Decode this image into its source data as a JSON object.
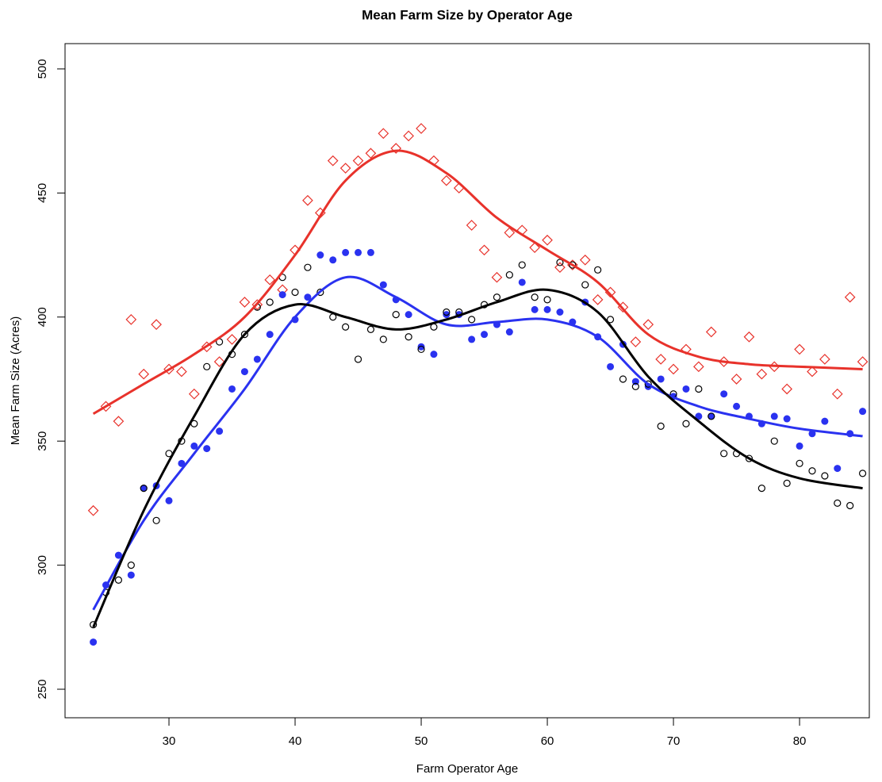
{
  "chart_data": {
    "type": "scatter",
    "title": "Mean Farm Size by Operator Age",
    "xlabel": "Farm Operator Age",
    "ylabel": "Mean Farm Size (Acres)",
    "xlim": [
      21.76,
      85.53
    ],
    "ylim": [
      238.5,
      510.2
    ],
    "xticks": [
      30,
      40,
      50,
      60,
      70,
      80
    ],
    "yticks": [
      250,
      300,
      350,
      400,
      450,
      500
    ],
    "x": [
      24,
      25,
      26,
      27,
      28,
      29,
      30,
      31,
      32,
      33,
      34,
      35,
      36,
      37,
      38,
      39,
      40,
      41,
      42,
      43,
      44,
      45,
      46,
      47,
      48,
      49,
      50,
      51,
      52,
      53,
      54,
      55,
      56,
      57,
      58,
      59,
      60,
      61,
      62,
      63,
      64,
      65,
      66,
      67,
      68,
      69,
      70,
      71,
      72,
      73,
      74,
      75,
      76,
      77,
      78,
      79,
      80,
      81,
      82,
      83,
      84,
      85
    ],
    "smooth_x": [
      24,
      28,
      32,
      36,
      40,
      44,
      48,
      52,
      56,
      60,
      64,
      68,
      72,
      76,
      80,
      85
    ],
    "series": [
      {
        "marker": "diamond",
        "color": "#e8322b",
        "values": [
          322,
          364,
          358,
          399,
          377,
          397,
          379,
          378,
          369,
          388,
          382,
          391,
          406,
          405,
          415,
          411,
          427,
          447,
          442,
          463,
          460,
          463,
          466,
          474,
          468,
          473,
          476,
          463,
          455,
          452,
          437,
          427,
          416,
          434,
          435,
          428,
          431,
          420,
          421,
          423,
          407,
          410,
          404,
          390,
          397,
          383,
          379,
          387,
          380,
          394,
          382,
          375,
          392,
          377,
          380,
          371,
          387,
          378,
          383,
          369,
          408,
          382
        ],
        "smooth": [
          361,
          373,
          385,
          400,
          425,
          455,
          467,
          458,
          440,
          427,
          414,
          393,
          384,
          381,
          380,
          379
        ]
      },
      {
        "marker": "filled-circle",
        "color": "#2a32f0",
        "values": [
          269,
          292,
          304,
          296,
          331,
          332,
          326,
          341,
          348,
          347,
          354,
          371,
          378,
          383,
          393,
          409,
          399,
          408,
          425,
          423,
          426,
          426,
          426,
          413,
          407,
          401,
          388,
          385,
          401,
          401,
          391,
          393,
          397,
          394,
          414,
          403,
          403,
          402,
          398,
          406,
          392,
          380,
          389,
          374,
          372,
          375,
          368,
          371,
          360,
          360,
          369,
          364,
          360,
          357,
          360,
          359,
          348,
          353,
          358,
          339,
          353,
          362
        ],
        "smooth": [
          282,
          318,
          345,
          371,
          400,
          416,
          408,
          397,
          398,
          399,
          392,
          373,
          364,
          359,
          355,
          352
        ]
      },
      {
        "marker": "open-circle",
        "color": "#000000",
        "values": [
          276,
          289,
          294,
          300,
          331,
          318,
          345,
          350,
          357,
          380,
          390,
          385,
          393,
          404,
          406,
          416,
          410,
          420,
          410,
          400,
          396,
          383,
          395,
          391,
          401,
          392,
          387,
          396,
          402,
          402,
          399,
          405,
          408,
          417,
          421,
          408,
          407,
          422,
          421,
          413,
          419,
          399,
          375,
          372,
          373,
          356,
          369,
          357,
          371,
          360,
          345,
          345,
          343,
          331,
          350,
          333,
          341,
          338,
          336,
          325,
          324,
          337
        ],
        "smooth": [
          275,
          322,
          360,
          393,
          405,
          400,
          395,
          399,
          406,
          411,
          402,
          376,
          358,
          343,
          335,
          331
        ]
      }
    ]
  }
}
